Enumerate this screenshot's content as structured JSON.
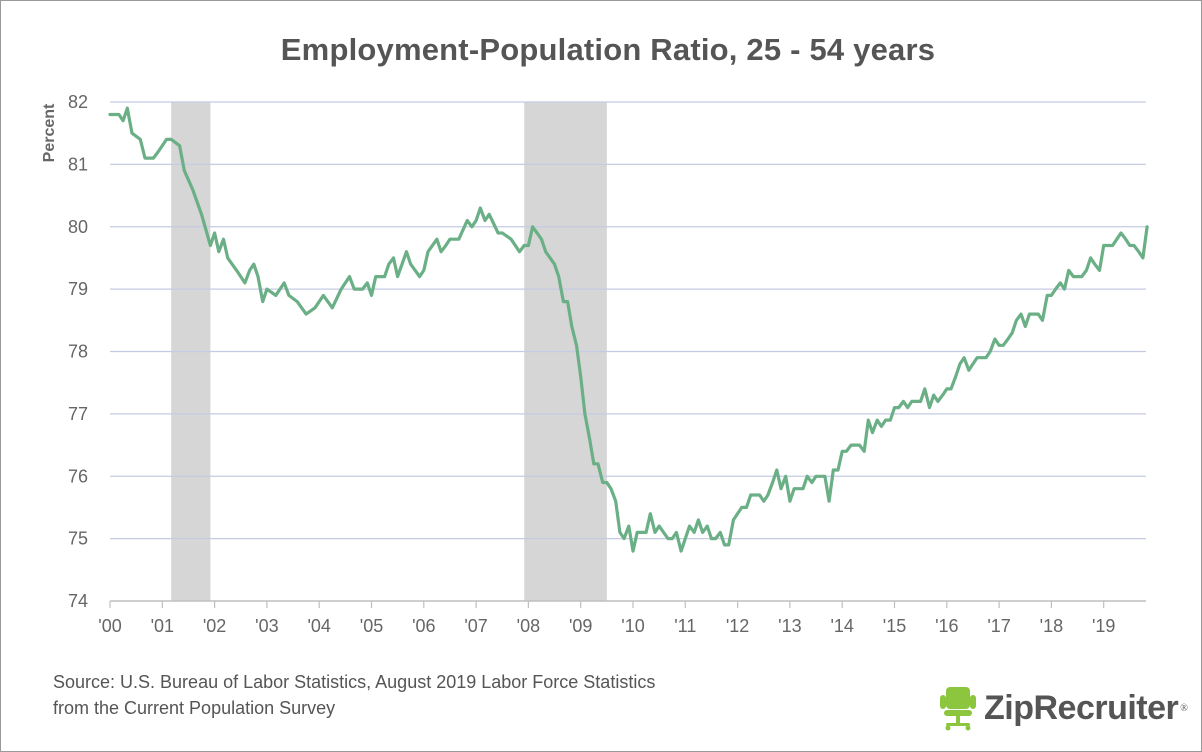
{
  "chart_data": {
    "type": "line",
    "title": "Employment-Population Ratio, 25 - 54 years",
    "ylabel": "Percent",
    "xlabel": "",
    "ylim": [
      74,
      82
    ],
    "xlim": [
      2000.0,
      2019.67
    ],
    "y_ticks": [
      "74",
      "75",
      "76",
      "77",
      "78",
      "79",
      "80",
      "81",
      "82"
    ],
    "x_ticks": [
      {
        "label": "'00",
        "value": 2000
      },
      {
        "label": "'01",
        "value": 2001
      },
      {
        "label": "'02",
        "value": 2002
      },
      {
        "label": "'03",
        "value": 2003
      },
      {
        "label": "'04",
        "value": 2004
      },
      {
        "label": "'05",
        "value": 2005
      },
      {
        "label": "'06",
        "value": 2006
      },
      {
        "label": "'07",
        "value": 2007
      },
      {
        "label": "'08",
        "value": 2008
      },
      {
        "label": "'09",
        "value": 2009
      },
      {
        "label": "'10",
        "value": 2010
      },
      {
        "label": "'11",
        "value": 2011
      },
      {
        "label": "'12",
        "value": 2012
      },
      {
        "label": "'13",
        "value": 2013
      },
      {
        "label": "'14",
        "value": 2014
      },
      {
        "label": "'15",
        "value": 2015
      },
      {
        "label": "'16",
        "value": 2016
      },
      {
        "label": "'17",
        "value": 2017
      },
      {
        "label": "'18",
        "value": 2018
      },
      {
        "label": "'19",
        "value": 2019
      }
    ],
    "grid": "horizontal",
    "recessions": [
      {
        "start": 2001.17,
        "end": 2001.92
      },
      {
        "start": 2007.92,
        "end": 2009.5
      }
    ],
    "series": [
      {
        "color": "#6aaf85",
        "points": [
          [
            2000.0,
            81.8
          ],
          [
            2000.17,
            81.8
          ],
          [
            2000.25,
            81.7
          ],
          [
            2000.33,
            81.9
          ],
          [
            2000.42,
            81.5
          ],
          [
            2000.58,
            81.4
          ],
          [
            2000.67,
            81.1
          ],
          [
            2000.83,
            81.1
          ],
          [
            2000.92,
            81.2
          ],
          [
            2001.08,
            81.4
          ],
          [
            2001.17,
            81.4
          ],
          [
            2001.33,
            81.3
          ],
          [
            2001.42,
            80.9
          ],
          [
            2001.58,
            80.6
          ],
          [
            2001.75,
            80.2
          ],
          [
            2001.92,
            79.7
          ],
          [
            2002.0,
            79.9
          ],
          [
            2002.08,
            79.6
          ],
          [
            2002.17,
            79.8
          ],
          [
            2002.25,
            79.5
          ],
          [
            2002.42,
            79.3
          ],
          [
            2002.58,
            79.1
          ],
          [
            2002.67,
            79.3
          ],
          [
            2002.75,
            79.4
          ],
          [
            2002.83,
            79.2
          ],
          [
            2002.92,
            78.8
          ],
          [
            2003.0,
            79.0
          ],
          [
            2003.17,
            78.9
          ],
          [
            2003.33,
            79.1
          ],
          [
            2003.42,
            78.9
          ],
          [
            2003.58,
            78.8
          ],
          [
            2003.75,
            78.6
          ],
          [
            2003.92,
            78.7
          ],
          [
            2004.08,
            78.9
          ],
          [
            2004.25,
            78.7
          ],
          [
            2004.42,
            79.0
          ],
          [
            2004.58,
            79.2
          ],
          [
            2004.67,
            79.0
          ],
          [
            2004.83,
            79.0
          ],
          [
            2004.92,
            79.1
          ],
          [
            2005.0,
            78.9
          ],
          [
            2005.08,
            79.2
          ],
          [
            2005.25,
            79.2
          ],
          [
            2005.33,
            79.4
          ],
          [
            2005.42,
            79.5
          ],
          [
            2005.5,
            79.2
          ],
          [
            2005.67,
            79.6
          ],
          [
            2005.75,
            79.4
          ],
          [
            2005.92,
            79.2
          ],
          [
            2006.0,
            79.3
          ],
          [
            2006.08,
            79.6
          ],
          [
            2006.25,
            79.8
          ],
          [
            2006.33,
            79.6
          ],
          [
            2006.42,
            79.7
          ],
          [
            2006.5,
            79.8
          ],
          [
            2006.67,
            79.8
          ],
          [
            2006.83,
            80.1
          ],
          [
            2006.92,
            80.0
          ],
          [
            2007.0,
            80.1
          ],
          [
            2007.08,
            80.3
          ],
          [
            2007.17,
            80.1
          ],
          [
            2007.25,
            80.2
          ],
          [
            2007.42,
            79.9
          ],
          [
            2007.5,
            79.9
          ],
          [
            2007.67,
            79.8
          ],
          [
            2007.83,
            79.6
          ],
          [
            2007.92,
            79.7
          ],
          [
            2008.0,
            79.7
          ],
          [
            2008.08,
            80.0
          ],
          [
            2008.25,
            79.8
          ],
          [
            2008.33,
            79.6
          ],
          [
            2008.5,
            79.4
          ],
          [
            2008.58,
            79.2
          ],
          [
            2008.67,
            78.8
          ],
          [
            2008.75,
            78.8
          ],
          [
            2008.83,
            78.4
          ],
          [
            2008.92,
            78.1
          ],
          [
            2009.0,
            77.6
          ],
          [
            2009.08,
            77.0
          ],
          [
            2009.17,
            76.6
          ],
          [
            2009.25,
            76.2
          ],
          [
            2009.33,
            76.2
          ],
          [
            2009.42,
            75.9
          ],
          [
            2009.5,
            75.9
          ],
          [
            2009.58,
            75.8
          ],
          [
            2009.67,
            75.6
          ],
          [
            2009.75,
            75.1
          ],
          [
            2009.83,
            75.0
          ],
          [
            2009.92,
            75.2
          ],
          [
            2010.0,
            74.8
          ],
          [
            2010.08,
            75.1
          ],
          [
            2010.25,
            75.1
          ],
          [
            2010.33,
            75.4
          ],
          [
            2010.42,
            75.1
          ],
          [
            2010.5,
            75.2
          ],
          [
            2010.67,
            75.0
          ],
          [
            2010.75,
            75.0
          ],
          [
            2010.83,
            75.1
          ],
          [
            2010.92,
            74.8
          ],
          [
            2011.0,
            75.0
          ],
          [
            2011.08,
            75.2
          ],
          [
            2011.17,
            75.1
          ],
          [
            2011.25,
            75.3
          ],
          [
            2011.33,
            75.1
          ],
          [
            2011.42,
            75.2
          ],
          [
            2011.5,
            75.0
          ],
          [
            2011.58,
            75.0
          ],
          [
            2011.67,
            75.1
          ],
          [
            2011.75,
            74.9
          ],
          [
            2011.83,
            74.9
          ],
          [
            2011.92,
            75.3
          ],
          [
            2012.08,
            75.5
          ],
          [
            2012.17,
            75.5
          ],
          [
            2012.25,
            75.7
          ],
          [
            2012.42,
            75.7
          ],
          [
            2012.5,
            75.6
          ],
          [
            2012.58,
            75.7
          ],
          [
            2012.67,
            75.9
          ],
          [
            2012.75,
            76.1
          ],
          [
            2012.83,
            75.8
          ],
          [
            2012.92,
            76.0
          ],
          [
            2013.0,
            75.6
          ],
          [
            2013.08,
            75.8
          ],
          [
            2013.25,
            75.8
          ],
          [
            2013.33,
            76.0
          ],
          [
            2013.42,
            75.9
          ],
          [
            2013.5,
            76.0
          ],
          [
            2013.67,
            76.0
          ],
          [
            2013.75,
            75.6
          ],
          [
            2013.83,
            76.1
          ],
          [
            2013.92,
            76.1
          ],
          [
            2014.0,
            76.4
          ],
          [
            2014.08,
            76.4
          ],
          [
            2014.17,
            76.5
          ],
          [
            2014.33,
            76.5
          ],
          [
            2014.42,
            76.4
          ],
          [
            2014.5,
            76.9
          ],
          [
            2014.58,
            76.7
          ],
          [
            2014.67,
            76.9
          ],
          [
            2014.75,
            76.8
          ],
          [
            2014.83,
            76.9
          ],
          [
            2014.92,
            76.9
          ],
          [
            2015.0,
            77.1
          ],
          [
            2015.08,
            77.1
          ],
          [
            2015.17,
            77.2
          ],
          [
            2015.25,
            77.1
          ],
          [
            2015.33,
            77.2
          ],
          [
            2015.5,
            77.2
          ],
          [
            2015.58,
            77.4
          ],
          [
            2015.67,
            77.1
          ],
          [
            2015.75,
            77.3
          ],
          [
            2015.83,
            77.2
          ],
          [
            2015.92,
            77.3
          ],
          [
            2016.0,
            77.4
          ],
          [
            2016.08,
            77.4
          ],
          [
            2016.17,
            77.6
          ],
          [
            2016.25,
            77.8
          ],
          [
            2016.33,
            77.9
          ],
          [
            2016.42,
            77.7
          ],
          [
            2016.5,
            77.8
          ],
          [
            2016.58,
            77.9
          ],
          [
            2016.75,
            77.9
          ],
          [
            2016.83,
            78.0
          ],
          [
            2016.92,
            78.2
          ],
          [
            2017.0,
            78.1
          ],
          [
            2017.08,
            78.1
          ],
          [
            2017.17,
            78.2
          ],
          [
            2017.25,
            78.3
          ],
          [
            2017.33,
            78.5
          ],
          [
            2017.42,
            78.6
          ],
          [
            2017.5,
            78.4
          ],
          [
            2017.58,
            78.6
          ],
          [
            2017.75,
            78.6
          ],
          [
            2017.83,
            78.5
          ],
          [
            2017.92,
            78.9
          ],
          [
            2018.0,
            78.9
          ],
          [
            2018.08,
            79.0
          ],
          [
            2018.17,
            79.1
          ],
          [
            2018.25,
            79.0
          ],
          [
            2018.33,
            79.3
          ],
          [
            2018.42,
            79.2
          ],
          [
            2018.58,
            79.2
          ],
          [
            2018.67,
            79.3
          ],
          [
            2018.75,
            79.5
          ],
          [
            2018.83,
            79.4
          ],
          [
            2018.92,
            79.3
          ],
          [
            2019.0,
            79.7
          ],
          [
            2019.17,
            79.7
          ],
          [
            2019.25,
            79.8
          ],
          [
            2019.33,
            79.9
          ],
          [
            2019.42,
            79.8
          ],
          [
            2019.5,
            79.7
          ],
          [
            2019.58,
            79.7
          ],
          [
            2019.67,
            79.6
          ],
          [
            2019.75,
            79.5
          ],
          [
            2019.83,
            80.0
          ]
        ]
      }
    ]
  },
  "source_line1": "Source: U.S. Bureau of Labor Statistics, August 2019 Labor Force Statistics",
  "source_line2": "from the Current Population Survey",
  "logo_text": "ZipRecruiter",
  "logo_mark": "®",
  "colors": {
    "line": "#6aaf85",
    "recession": "#d6d6d6",
    "grid": "#c5cbe3",
    "logo_green": "#8cc63f"
  }
}
